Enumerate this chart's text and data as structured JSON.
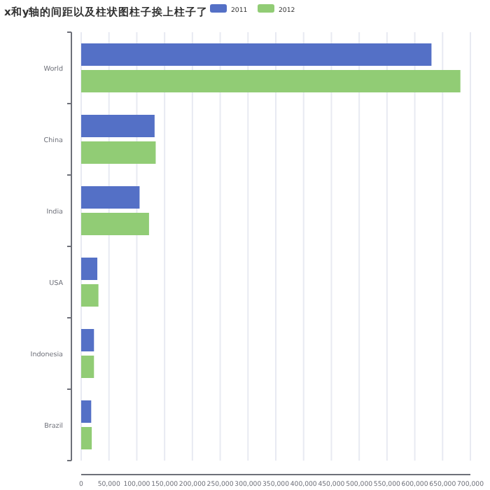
{
  "chart_data": {
    "type": "bar",
    "orientation": "horizontal",
    "title": "x和y轴的间距以及柱状图柱子挨上柱子了",
    "categories": [
      "World",
      "China",
      "India",
      "USA",
      "Indonesia",
      "Brazil"
    ],
    "series": [
      {
        "name": "2011",
        "color": "#5470c6",
        "values": [
          630000,
          132000,
          105000,
          29000,
          23000,
          18000
        ]
      },
      {
        "name": "2012",
        "color": "#91cc75",
        "values": [
          682000,
          134000,
          122000,
          31000,
          23000,
          19000
        ]
      }
    ],
    "xlim": [
      0,
      700000
    ],
    "xticks": [
      {
        "value": 0,
        "label": "0"
      },
      {
        "value": 50000,
        "label": "50,000"
      },
      {
        "value": 100000,
        "label": "100,000"
      },
      {
        "value": 150000,
        "label": "150,000"
      },
      {
        "value": 200000,
        "label": "200,000"
      },
      {
        "value": 250000,
        "label": "250,000"
      },
      {
        "value": 300000,
        "label": "300,000"
      },
      {
        "value": 350000,
        "label": "350,000"
      },
      {
        "value": 400000,
        "label": "400,000"
      },
      {
        "value": 450000,
        "label": "450,000"
      },
      {
        "value": 500000,
        "label": "500,000"
      },
      {
        "value": 550000,
        "label": "550,000"
      },
      {
        "value": 600000,
        "label": "600,000"
      },
      {
        "value": 650000,
        "label": "650,000"
      },
      {
        "value": 700000,
        "label": "700,000"
      }
    ],
    "grid": "x",
    "legend": "top"
  }
}
